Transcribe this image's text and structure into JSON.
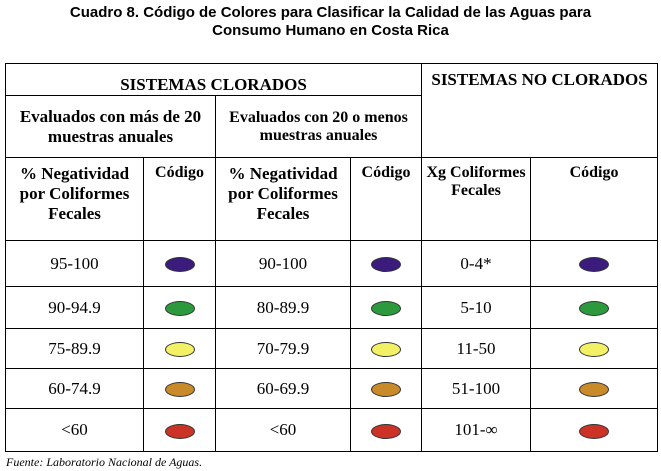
{
  "header": {
    "title_lines": [
      "Cuadro 8.  Código de Colores para Clasificar la Calidad de las Aguas para",
      "Consumo Humano en Costa Rica"
    ]
  },
  "table": {
    "groups": [
      "SISTEMAS CLORADOS",
      "SISTEMAS NO CLORADOS"
    ],
    "subgroups": [
      "Evaluados con más de 20 muestras anuales",
      "Evaluados con 20 o menos muestras anuales"
    ],
    "columns": [
      "% Negatividad por Coliformes Fecales",
      "Código",
      "% Negatividad por Coliformes Fecales",
      "Código",
      "Xg Coliformes Fecales",
      "Código"
    ],
    "rows": [
      [
        "95-100",
        "90-100",
        "0-4*"
      ],
      [
        "90-94.9",
        "80-89.9",
        "5-10"
      ],
      [
        "75-89.9",
        "70-79.9",
        "11-50"
      ],
      [
        "60-74.9",
        "60-69.9",
        "51-100"
      ],
      [
        "<60",
        "<60",
        "101-∞"
      ]
    ]
  },
  "footer": {
    "source": "Fuente:  Laboratorio Nacional de Aguas."
  }
}
